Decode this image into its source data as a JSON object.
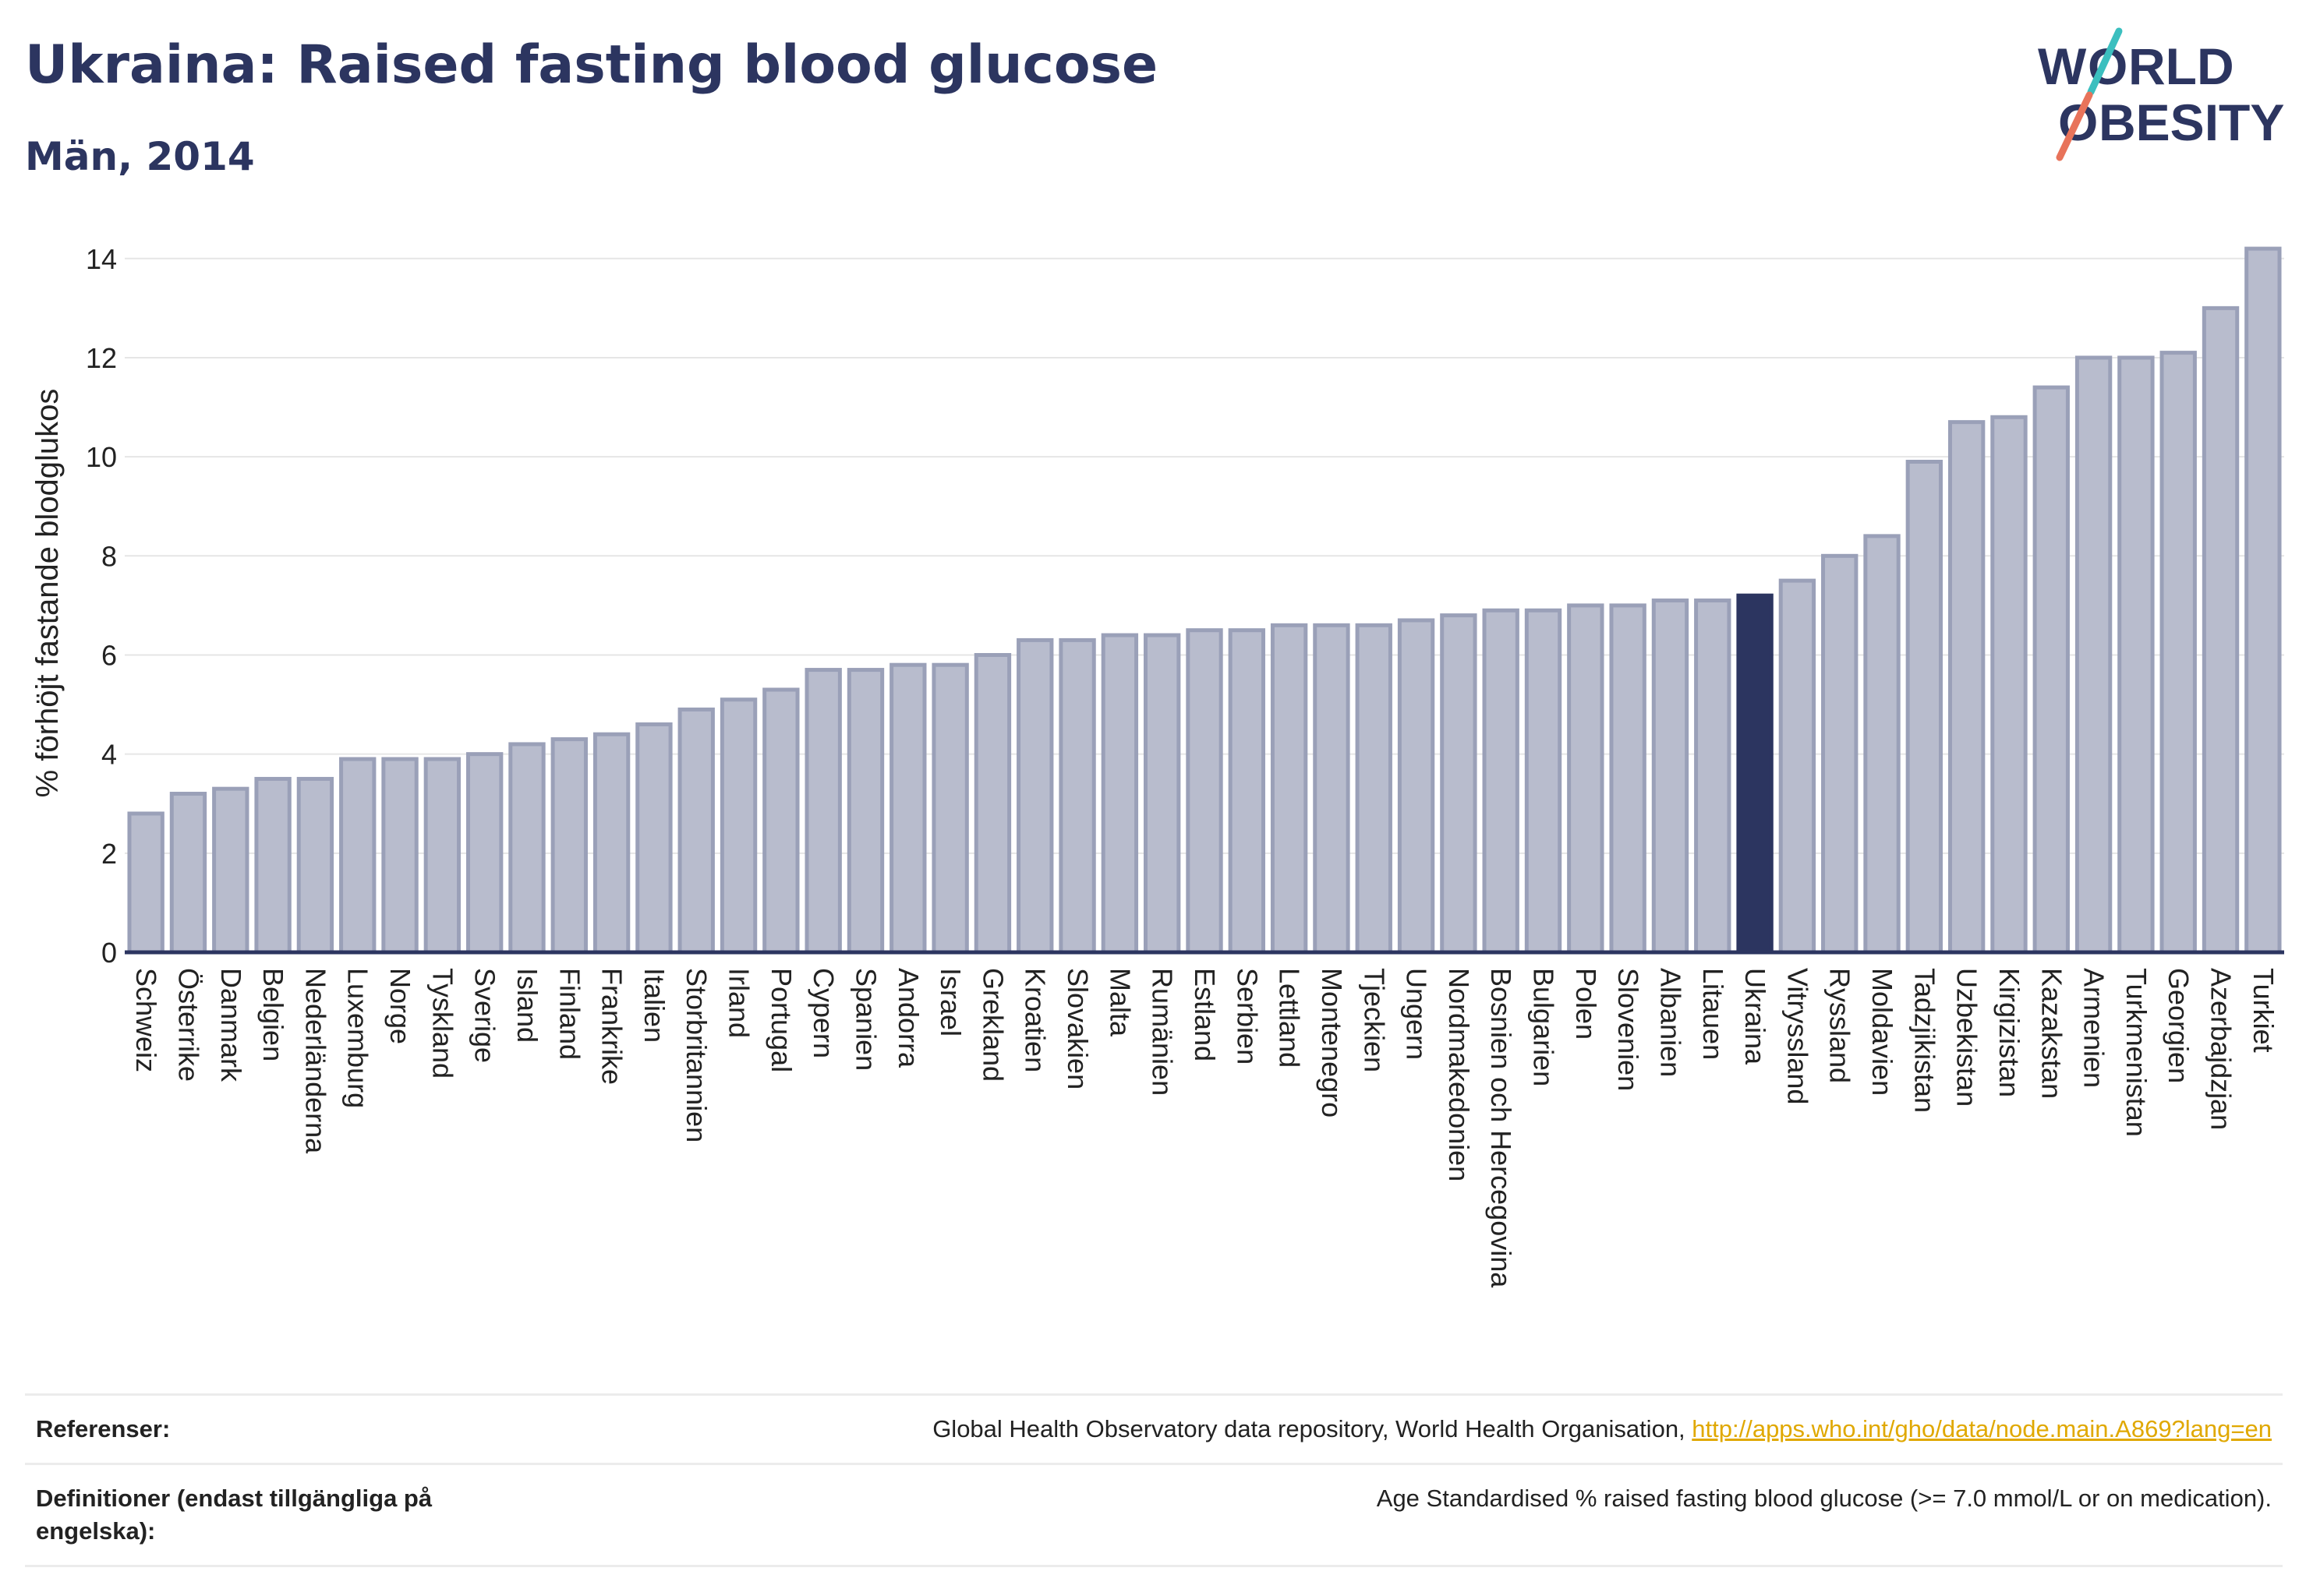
{
  "header": {
    "title": "Ukraina: Raised fasting blood glucose",
    "subtitle": "Män, 2014"
  },
  "logo": {
    "line1": "WORLD",
    "line2": "OBESITY"
  },
  "colors": {
    "bar_fill": "#b8bccd",
    "bar_stroke": "#9aa0b8",
    "highlight": "#2c3560",
    "text": "#2c3560",
    "grid": "#e6e6e6",
    "link": "#e0a800",
    "logo_teal": "#3bbfbf",
    "logo_coral": "#e8735a"
  },
  "chart_data": {
    "type": "bar",
    "ylabel": "% förhöjt fastande blodglukos",
    "ylim": [
      0,
      14.5
    ],
    "yticks": [
      0,
      2,
      4,
      6,
      8,
      10,
      12,
      14
    ],
    "grid": true,
    "highlight": "Ukraina",
    "categories": [
      "Schweiz",
      "Österrike",
      "Danmark",
      "Belgien",
      "Nederländerna",
      "Luxemburg",
      "Norge",
      "Tyskland",
      "Sverige",
      "Island",
      "Finland",
      "Frankrike",
      "Italien",
      "Storbritannien",
      "Irland",
      "Portugal",
      "Cypern",
      "Spanien",
      "Andorra",
      "Israel",
      "Grekland",
      "Kroatien",
      "Slovakien",
      "Malta",
      "Rumänien",
      "Estland",
      "Serbien",
      "Lettland",
      "Montenegro",
      "Tjeckien",
      "Ungern",
      "Nordmakedonien",
      "Bosnien och Hercegovina",
      "Bulgarien",
      "Polen",
      "Slovenien",
      "Albanien",
      "Litauen",
      "Ukraina",
      "Vitryssland",
      "Ryssland",
      "Moldavien",
      "Tadzjikistan",
      "Uzbekistan",
      "Kirgizistan",
      "Kazakstan",
      "Armenien",
      "Turkmenistan",
      "Georgien",
      "Azerbajdzjan",
      "Turkiet"
    ],
    "values": [
      2.8,
      3.2,
      3.3,
      3.5,
      3.5,
      3.9,
      3.9,
      3.9,
      4.0,
      4.2,
      4.3,
      4.4,
      4.6,
      4.9,
      5.1,
      5.3,
      5.7,
      5.7,
      5.8,
      5.8,
      6.0,
      6.3,
      6.3,
      6.4,
      6.4,
      6.5,
      6.5,
      6.6,
      6.6,
      6.6,
      6.7,
      6.8,
      6.9,
      6.9,
      7.0,
      7.0,
      7.1,
      7.1,
      7.2,
      7.5,
      8.0,
      8.4,
      9.9,
      10.7,
      10.8,
      11.4,
      12.0,
      12.0,
      12.1,
      13.0,
      14.2
    ]
  },
  "footer": {
    "references_label": "Referenser:",
    "references_text": "Global Health Observatory data repository, World Health Organisation, ",
    "references_link": "http://apps.who.int/gho/data/node.main.A869?lang=en",
    "definitions_label": "Definitioner (endast tillgängliga på engelska):",
    "definitions_text": "Age Standardised % raised fasting blood glucose (>= 7.0 mmol/L or on medication)."
  }
}
